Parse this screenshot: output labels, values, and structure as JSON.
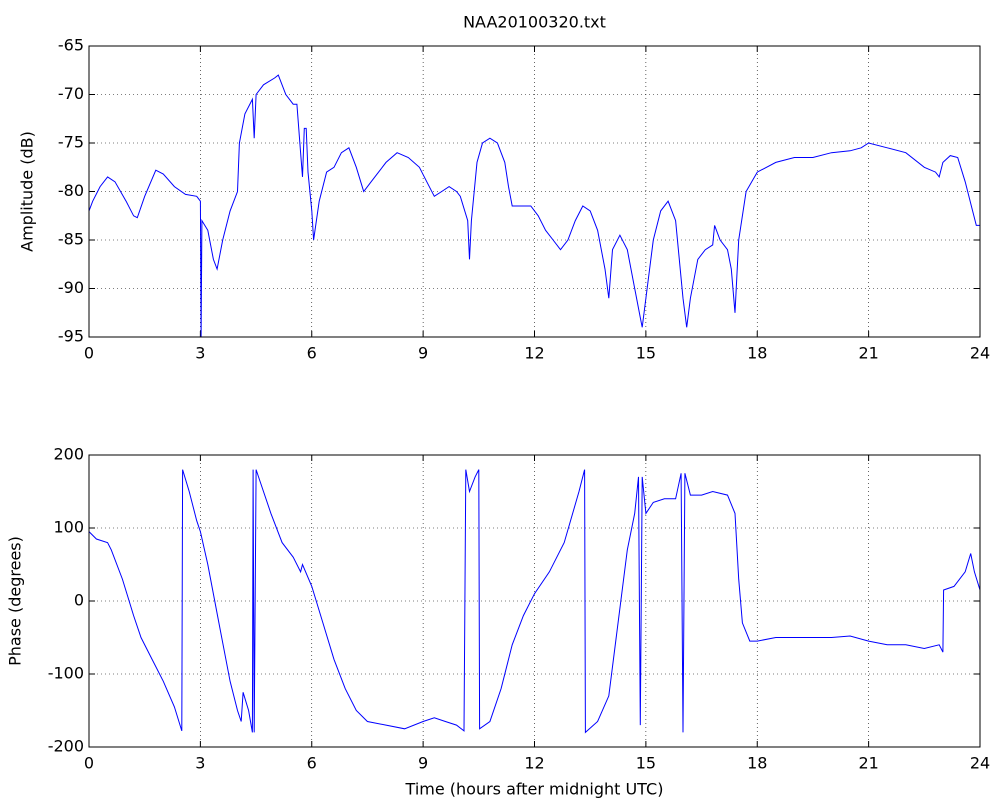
{
  "chart_data": [
    {
      "type": "line",
      "title": "NAA20100320.txt",
      "ylabel": "Amplitude (dB)",
      "color": "#0000ff",
      "grid": true,
      "xlim": [
        0,
        24
      ],
      "xticks": [
        0,
        3,
        6,
        9,
        12,
        15,
        18,
        21,
        24
      ],
      "ylim": [
        -95,
        -65
      ],
      "yticks": [
        -95,
        -90,
        -85,
        -80,
        -75,
        -70,
        -65
      ],
      "x": [
        0,
        0.1,
        0.3,
        0.5,
        0.7,
        1.0,
        1.2,
        1.3,
        1.5,
        1.8,
        2.0,
        2.3,
        2.6,
        2.9,
        3.0,
        3.02,
        3.04,
        3.2,
        3.35,
        3.45,
        3.6,
        3.8,
        4.0,
        4.05,
        4.2,
        4.4,
        4.45,
        4.5,
        4.7,
        5.0,
        5.1,
        5.3,
        5.5,
        5.6,
        5.7,
        5.75,
        5.8,
        5.85,
        5.9,
        6.0,
        6.05,
        6.2,
        6.4,
        6.6,
        6.8,
        7.0,
        7.2,
        7.4,
        7.6,
        7.8,
        8.0,
        8.3,
        8.6,
        8.9,
        9.1,
        9.3,
        9.5,
        9.7,
        9.9,
        10.0,
        10.2,
        10.25,
        10.3,
        10.45,
        10.6,
        10.8,
        11.0,
        11.2,
        11.3,
        11.4,
        11.6,
        11.9,
        12.1,
        12.3,
        12.5,
        12.7,
        12.9,
        13.1,
        13.3,
        13.5,
        13.7,
        13.9,
        14.0,
        14.1,
        14.3,
        14.5,
        14.7,
        14.85,
        14.9,
        15.0,
        15.2,
        15.4,
        15.6,
        15.8,
        16.0,
        16.1,
        16.2,
        16.4,
        16.6,
        16.8,
        16.85,
        17.0,
        17.2,
        17.3,
        17.4,
        17.5,
        17.7,
        18.0,
        18.5,
        19.0,
        19.5,
        20.0,
        20.5,
        20.8,
        21.0,
        21.5,
        22.0,
        22.5,
        22.8,
        22.9,
        23.0,
        23.2,
        23.4,
        23.6,
        23.8,
        23.9,
        24.0
      ],
      "values": [
        -82,
        -81,
        -79.5,
        -78.5,
        -79,
        -81,
        -82.5,
        -82.7,
        -80.5,
        -77.8,
        -78.2,
        -79.5,
        -80.3,
        -80.5,
        -81,
        -95,
        -83,
        -84,
        -87,
        -88,
        -85,
        -82,
        -80,
        -75,
        -72,
        -70.5,
        -74.5,
        -70,
        -69,
        -68.3,
        -68,
        -70,
        -71,
        -71,
        -76,
        -78.5,
        -73.5,
        -73.5,
        -78,
        -82,
        -85,
        -81,
        -78,
        -77.5,
        -76,
        -75.5,
        -77.5,
        -80,
        -79,
        -78,
        -77,
        -76,
        -76.5,
        -77.5,
        -79,
        -80.5,
        -80,
        -79.5,
        -80,
        -80.5,
        -83,
        -87,
        -83,
        -77,
        -75,
        -74.5,
        -75,
        -77,
        -79.5,
        -81.5,
        -81.5,
        -81.5,
        -82.5,
        -84,
        -85,
        -86,
        -85,
        -83,
        -81.5,
        -82,
        -84,
        -88,
        -91,
        -86,
        -84.5,
        -86,
        -90,
        -93,
        -94,
        -91,
        -85,
        -82,
        -81,
        -83,
        -91,
        -94,
        -91,
        -87,
        -86,
        -85.5,
        -83.5,
        -85,
        -86,
        -88,
        -92.5,
        -85,
        -80,
        -78,
        -77,
        -76.5,
        -76.5,
        -76,
        -75.8,
        -75.5,
        -75,
        -75.5,
        -76,
        -77.5,
        -78,
        -78.5,
        -77,
        -76.3,
        -76.5,
        -79,
        -82,
        -83.5,
        -83.5
      ]
    },
    {
      "type": "line",
      "ylabel": "Phase (degrees)",
      "xlabel": "Time (hours after midnight UTC)",
      "color": "#0000ff",
      "grid": true,
      "xlim": [
        0,
        24
      ],
      "xticks": [
        0,
        3,
        6,
        9,
        12,
        15,
        18,
        21,
        24
      ],
      "ylim": [
        -200,
        200
      ],
      "yticks": [
        -200,
        -100,
        0,
        100,
        200
      ],
      "x": [
        0,
        0.2,
        0.5,
        0.6,
        0.9,
        1.2,
        1.4,
        1.7,
        2.0,
        2.3,
        2.5,
        2.52,
        2.7,
        2.9,
        3.0,
        3.2,
        3.5,
        3.8,
        4.0,
        4.1,
        4.15,
        4.3,
        4.4,
        4.42,
        4.45,
        4.5,
        4.6,
        4.9,
        5.2,
        5.5,
        5.7,
        5.75,
        6.0,
        6.3,
        6.6,
        6.9,
        7.2,
        7.5,
        8.0,
        8.5,
        9.0,
        9.3,
        9.6,
        9.9,
        10.1,
        10.15,
        10.25,
        10.4,
        10.5,
        10.52,
        10.8,
        11.1,
        11.4,
        11.7,
        12.0,
        12.4,
        12.8,
        13.2,
        13.35,
        13.37,
        13.7,
        14.0,
        14.2,
        14.5,
        14.7,
        14.8,
        14.85,
        14.9,
        15.0,
        15.2,
        15.5,
        15.8,
        15.95,
        16.0,
        16.05,
        16.2,
        16.5,
        16.8,
        17.2,
        17.4,
        17.5,
        17.6,
        17.8,
        18.0,
        18.5,
        19.0,
        19.5,
        20.0,
        20.5,
        21.0,
        21.5,
        22.0,
        22.5,
        22.9,
        23.0,
        23.02,
        23.3,
        23.6,
        23.75,
        23.85,
        24.0
      ],
      "values": [
        95,
        85,
        80,
        70,
        30,
        -20,
        -50,
        -80,
        -110,
        -145,
        -178,
        180,
        150,
        110,
        95,
        50,
        -30,
        -110,
        -150,
        -165,
        -125,
        -150,
        -180,
        180,
        -180,
        180,
        165,
        120,
        80,
        60,
        40,
        50,
        20,
        -30,
        -80,
        -120,
        -150,
        -165,
        -170,
        -175,
        -165,
        -160,
        -165,
        -170,
        -178,
        180,
        150,
        170,
        180,
        -175,
        -165,
        -120,
        -60,
        -20,
        10,
        40,
        80,
        150,
        180,
        -180,
        -165,
        -130,
        -50,
        70,
        120,
        170,
        -170,
        170,
        120,
        135,
        140,
        140,
        175,
        -180,
        175,
        145,
        145,
        150,
        145,
        120,
        30,
        -30,
        -55,
        -55,
        -50,
        -50,
        -50,
        -50,
        -48,
        -55,
        -60,
        -60,
        -65,
        -60,
        -70,
        15,
        20,
        40,
        65,
        40,
        15
      ]
    }
  ]
}
